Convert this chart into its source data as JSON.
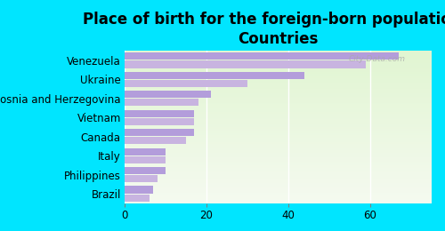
{
  "title": "Place of birth for the foreign-born population -\nCountries",
  "categories": [
    "Brazil",
    "Philippines",
    "Italy",
    "Canada",
    "Vietnam",
    "Bosnia and Herzegovina",
    "Ukraine",
    "Venezuela"
  ],
  "values1": [
    7,
    10,
    10,
    17,
    17,
    21,
    44,
    67
  ],
  "values2": [
    6,
    8,
    10,
    15,
    17,
    18,
    30,
    59
  ],
  "bar_color1": "#b39ddb",
  "bar_color2": "#c8b4e0",
  "background_color": "#00e5ff",
  "plot_bg_color": "#e8f5e0",
  "xlim": [
    0,
    75
  ],
  "xticks": [
    0,
    20,
    40,
    60
  ],
  "title_fontsize": 12,
  "label_fontsize": 8.5
}
